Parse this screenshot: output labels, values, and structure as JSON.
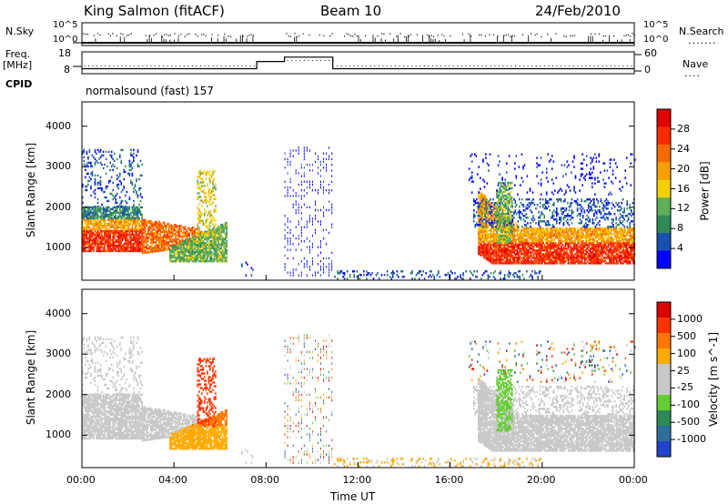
{
  "header": {
    "station": "King Salmon (fitACF)",
    "beam": "Beam 10",
    "date": "24/Feb/2010"
  },
  "left_labels": {
    "nsky": "N.Sky",
    "freq": "Freq.",
    "freq_unit": "[MHz]",
    "cpid": "CPID"
  },
  "right_labels": {
    "nsearch": "N.Search",
    "nave": "Nave"
  },
  "noise_scale": {
    "top": "10^5",
    "bottom": "10^0"
  },
  "freq_scale": {
    "left_top": "18",
    "left_bottom": "8",
    "right_top": "60",
    "right_bottom": "0"
  },
  "cpid_text": "normalsound (fast) 157",
  "colors": {
    "power": [
      "#0000ff",
      "#1a4fb3",
      "#2e8b57",
      "#5fae5a",
      "#f5d000",
      "#f5a000",
      "#f56a00",
      "#ff2a00",
      "#e00000"
    ],
    "velocity": [
      "#2244cc",
      "#2e6f9e",
      "#2e8b57",
      "#66cc33",
      "#c8c8c8",
      "#c8c8c8",
      "#ffaa00",
      "#ff7700",
      "#ff3300",
      "#dd0000"
    ]
  },
  "chart_data": [
    {
      "type": "heatmap",
      "panel": "power",
      "ylabel": "Slant Range [km]",
      "y_ticks": [
        "1000",
        "2000",
        "3000",
        "4000"
      ],
      "ylim": [
        200,
        4600
      ],
      "xlim": [
        0,
        24
      ],
      "colorbar_label": "Power [dB]",
      "colorbar_ticks": [
        "28",
        "24",
        "20",
        "16",
        "12",
        "8",
        "4"
      ]
    },
    {
      "type": "heatmap",
      "panel": "velocity",
      "ylabel": "Slant Range [km]",
      "y_ticks": [
        "1000",
        "2000",
        "3000",
        "4000"
      ],
      "ylim": [
        200,
        4600
      ],
      "xlim": [
        0,
        24
      ],
      "colorbar_label": "Velocity [m s^-1]",
      "colorbar_ticks": [
        "1000",
        "500",
        "100",
        "25",
        "-25",
        "-100",
        "-500",
        "-1000"
      ]
    }
  ],
  "x_axis": {
    "ticks": [
      "00:00",
      "04:00",
      "08:00",
      "12:00",
      "16:00",
      "20:00",
      "00:00"
    ],
    "label": "Time UT"
  }
}
